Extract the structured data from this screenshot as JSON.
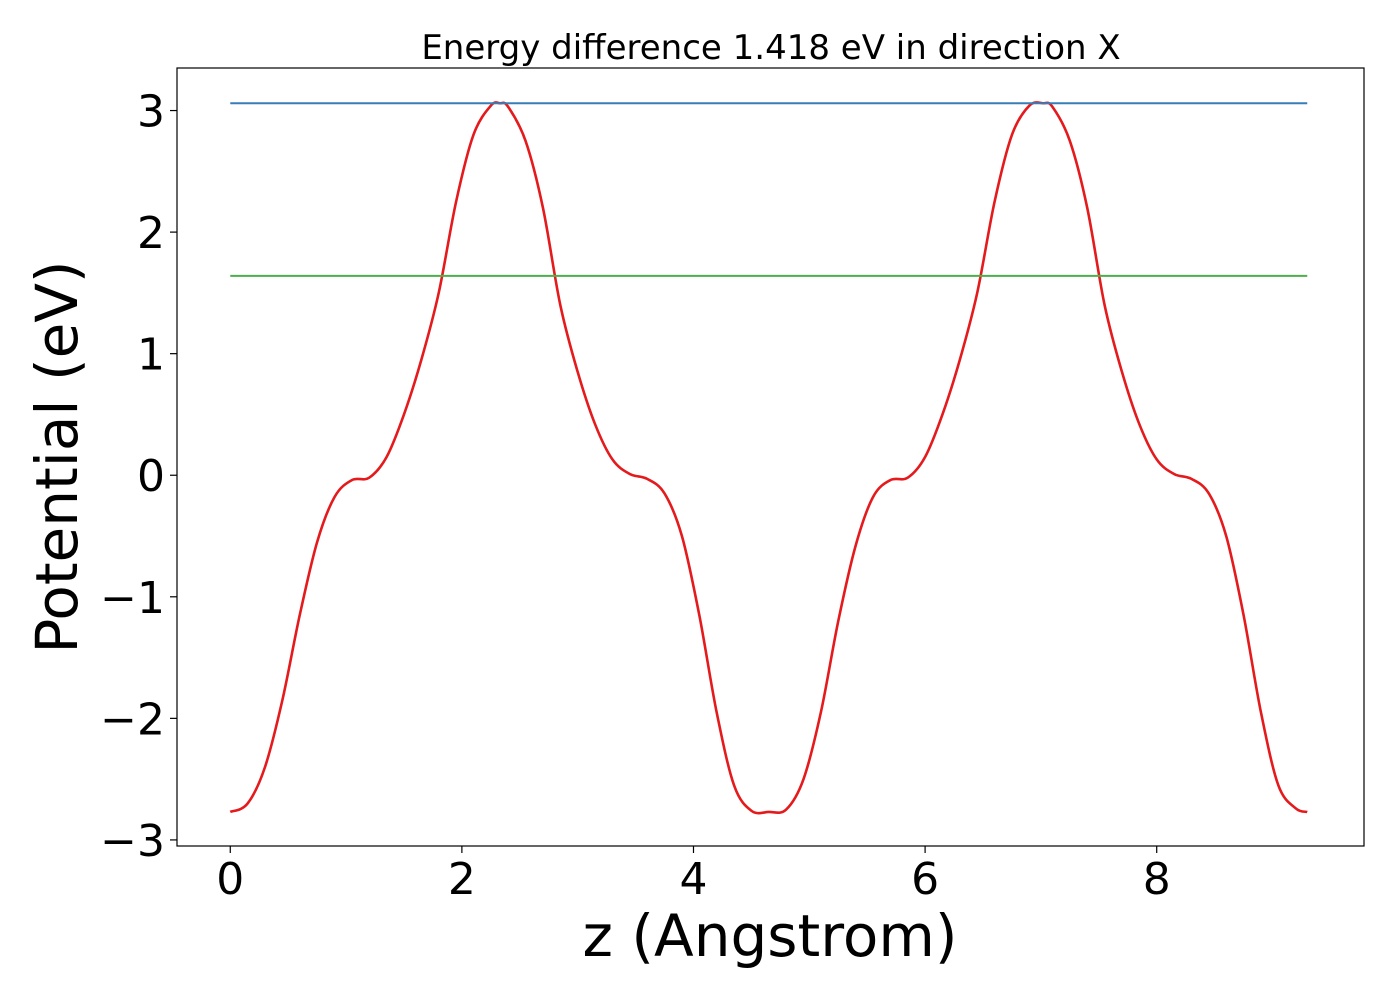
{
  "chart_data": {
    "type": "line",
    "title": "Energy difference 1.418 eV in direction X",
    "xlabel": "z (Angstrom)",
    "ylabel": "Potential (eV)",
    "xlim": [
      -0.46,
      9.79
    ],
    "ylim": [
      -3.05,
      3.35
    ],
    "xticks": [
      0,
      2,
      4,
      6,
      8
    ],
    "yticks": [
      -3,
      -2,
      -1,
      0,
      1,
      2,
      3
    ],
    "xtick_labels": [
      "0",
      "2",
      "4",
      "6",
      "8"
    ],
    "ytick_labels": [
      "−3",
      "−2",
      "−1",
      "0",
      "1",
      "2",
      "3"
    ],
    "grid": false,
    "legend": "none",
    "series": [
      {
        "color": "#e41a1c",
        "x": [
          0.0,
          0.15,
          0.3,
          0.45,
          0.6,
          0.75,
          0.9,
          1.05,
          1.2,
          1.35,
          1.5,
          1.65,
          1.8,
          1.95,
          2.1,
          2.25,
          2.33,
          2.4,
          2.55,
          2.7,
          2.85,
          3.0,
          3.15,
          3.3,
          3.45,
          3.6,
          3.75,
          3.9,
          4.05,
          4.2,
          4.35,
          4.5,
          4.65,
          4.8,
          4.95,
          5.1,
          5.25,
          5.4,
          5.55,
          5.7,
          5.85,
          6.0,
          6.15,
          6.3,
          6.45,
          6.6,
          6.75,
          6.9,
          7.02,
          7.1,
          7.25,
          7.4,
          7.55,
          7.7,
          7.85,
          8.0,
          8.15,
          8.3,
          8.45,
          8.6,
          8.75,
          8.9,
          9.05,
          9.2,
          9.3
        ],
        "y": [
          -2.77,
          -2.7,
          -2.4,
          -1.85,
          -1.15,
          -0.55,
          -0.18,
          -0.04,
          -0.02,
          0.15,
          0.5,
          0.95,
          1.5,
          2.25,
          2.8,
          3.04,
          3.06,
          3.03,
          2.75,
          2.2,
          1.4,
          0.85,
          0.42,
          0.13,
          0.01,
          -0.03,
          -0.15,
          -0.5,
          -1.15,
          -1.95,
          -2.55,
          -2.76,
          -2.77,
          -2.75,
          -2.5,
          -1.95,
          -1.2,
          -0.58,
          -0.18,
          -0.04,
          -0.02,
          0.15,
          0.5,
          0.95,
          1.5,
          2.25,
          2.8,
          3.04,
          3.06,
          3.03,
          2.75,
          2.2,
          1.4,
          0.85,
          0.42,
          0.13,
          0.01,
          -0.03,
          -0.15,
          -0.5,
          -1.15,
          -1.95,
          -2.55,
          -2.74,
          -2.77
        ]
      },
      {
        "color": "#377eb8",
        "x": [
          0.0,
          9.3
        ],
        "y": [
          3.06,
          3.06
        ]
      },
      {
        "color": "#4daf4a",
        "x": [
          0.0,
          9.3
        ],
        "y": [
          1.64,
          1.64
        ]
      }
    ]
  }
}
